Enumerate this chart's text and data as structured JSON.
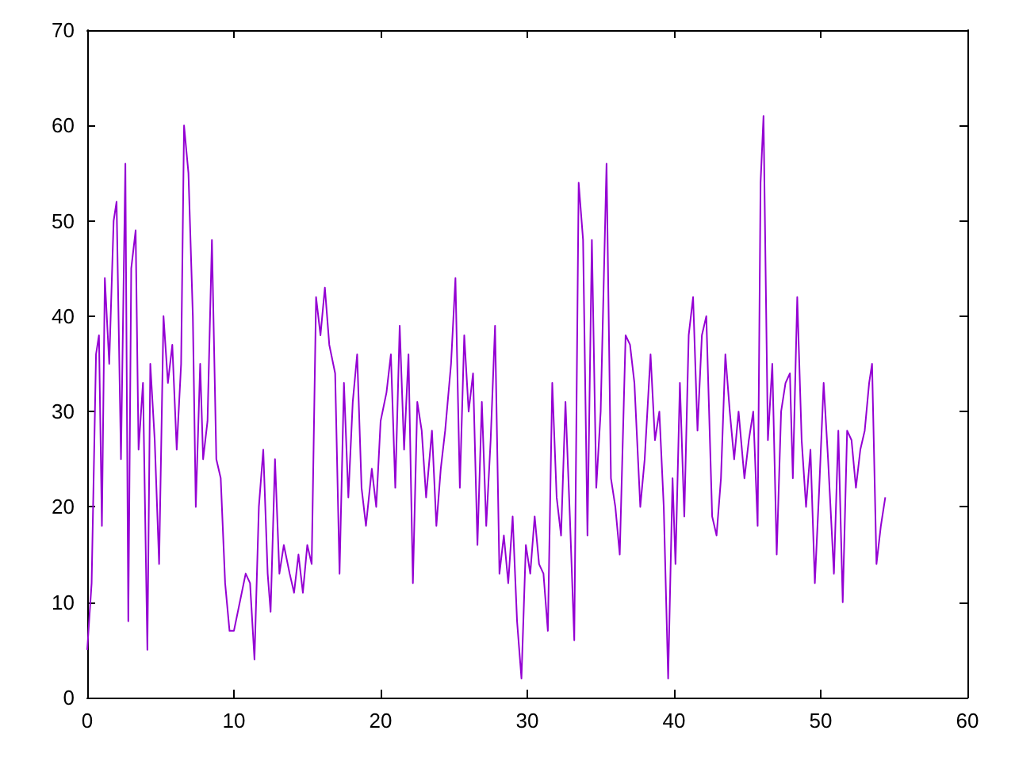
{
  "chart_data": {
    "type": "line",
    "x": [
      0,
      0.3,
      0.6,
      0.8,
      1.0,
      1.2,
      1.5,
      1.8,
      2.0,
      2.3,
      2.6,
      2.8,
      3.0,
      3.3,
      3.5,
      3.8,
      4.1,
      4.3,
      4.6,
      4.9,
      5.2,
      5.5,
      5.8,
      6.1,
      6.4,
      6.6,
      6.9,
      7.2,
      7.4,
      7.7,
      7.9,
      8.2,
      8.5,
      8.8,
      9.1,
      9.4,
      9.7,
      10.0,
      10.4,
      10.8,
      11.1,
      11.4,
      11.7,
      12.0,
      12.3,
      12.5,
      12.8,
      13.1,
      13.4,
      13.8,
      14.1,
      14.4,
      14.7,
      15.0,
      15.3,
      15.6,
      15.9,
      16.2,
      16.5,
      16.9,
      17.2,
      17.5,
      17.8,
      18.1,
      18.4,
      18.7,
      19.0,
      19.4,
      19.7,
      20.0,
      20.4,
      20.7,
      21.0,
      21.3,
      21.6,
      21.9,
      22.2,
      22.5,
      22.8,
      23.1,
      23.5,
      23.8,
      24.1,
      24.4,
      24.8,
      25.1,
      25.4,
      25.7,
      26.0,
      26.3,
      26.6,
      26.9,
      27.2,
      27.5,
      27.8,
      28.1,
      28.4,
      28.7,
      29.0,
      29.3,
      29.6,
      29.9,
      30.2,
      30.5,
      30.8,
      31.1,
      31.4,
      31.7,
      32.0,
      32.3,
      32.6,
      32.9,
      33.2,
      33.5,
      33.8,
      34.1,
      34.4,
      34.7,
      35.0,
      35.4,
      35.7,
      36.0,
      36.3,
      36.7,
      37.0,
      37.3,
      37.7,
      38.0,
      38.4,
      38.7,
      39.0,
      39.3,
      39.6,
      39.9,
      40.1,
      40.4,
      40.7,
      41.0,
      41.3,
      41.6,
      41.9,
      42.2,
      42.6,
      42.9,
      43.2,
      43.5,
      43.8,
      44.1,
      44.4,
      44.8,
      45.1,
      45.4,
      45.7,
      45.9,
      46.1,
      46.4,
      46.7,
      47.0,
      47.3,
      47.6,
      47.9,
      48.1,
      48.4,
      48.7,
      49.0,
      49.3,
      49.6,
      49.9,
      50.2,
      50.5,
      50.9,
      51.2,
      51.5,
      51.8,
      52.1,
      52.4,
      52.7,
      53.0,
      53.3,
      53.5,
      53.8,
      54.1,
      54.4
    ],
    "series": [
      {
        "color": "#9400d3",
        "values": [
          5,
          12,
          36,
          38,
          18,
          44,
          35,
          50,
          52,
          25,
          56,
          8,
          45,
          49,
          26,
          33,
          5,
          35,
          27,
          14,
          40,
          33,
          37,
          26,
          35,
          60,
          55,
          40,
          20,
          35,
          25,
          29,
          48,
          25,
          23,
          12,
          7,
          7,
          10,
          13,
          12,
          4,
          20,
          26,
          13,
          9,
          25,
          13,
          16,
          13,
          11,
          15,
          11,
          16,
          14,
          42,
          38,
          43,
          37,
          34,
          13,
          33,
          21,
          31,
          36,
          22,
          18,
          24,
          20,
          29,
          32,
          36,
          22,
          39,
          26,
          36,
          12,
          31,
          28,
          21,
          28,
          18,
          24,
          28,
          35,
          44,
          22,
          38,
          30,
          34,
          16,
          31,
          18,
          27,
          39,
          13,
          17,
          12,
          19,
          8,
          2,
          16,
          13,
          19,
          14,
          13,
          7,
          33,
          21,
          17,
          31,
          19,
          6,
          54,
          48,
          17,
          48,
          22,
          30,
          56,
          23,
          20,
          15,
          38,
          37,
          33,
          20,
          25,
          36,
          27,
          30,
          20,
          2,
          23,
          14,
          33,
          19,
          38,
          42,
          28,
          38,
          40,
          19,
          17,
          23,
          36,
          30,
          25,
          30,
          23,
          27,
          30,
          18,
          54,
          61,
          27,
          35,
          15,
          30,
          33,
          34,
          23,
          42,
          27,
          20,
          26,
          12,
          22,
          33,
          25,
          13,
          28,
          10,
          28,
          27,
          22,
          26,
          28,
          33,
          35,
          14,
          18,
          21
        ]
      }
    ],
    "xlim": [
      0,
      60
    ],
    "xticks": [
      0,
      10,
      20,
      30,
      40,
      50,
      60
    ],
    "ylim": [
      0,
      70
    ],
    "yticks": [
      0,
      10,
      20,
      30,
      40,
      50,
      60,
      70
    ],
    "grid": false,
    "marker": "none",
    "line_style": "solid"
  }
}
